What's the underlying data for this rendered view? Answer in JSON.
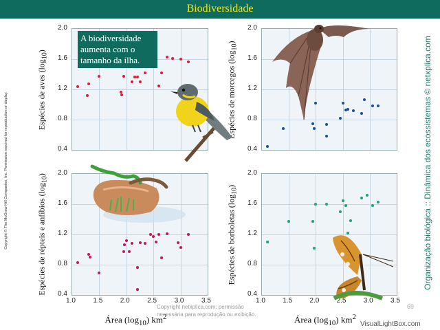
{
  "header": {
    "title": "Biodiversidade"
  },
  "callout": {
    "text": "A biodiversidade aumenta com o tamanho da ilha."
  },
  "side": {
    "copyright_left": "Copyright © The McGraw-Hill Companies, Inc. Permission required for reproduction or display.",
    "right_text": "Organização biológica :: Dinâmica dos ecossistemas © netxplica.com"
  },
  "footer": {
    "line1": "Copyright netxplica.com: permissão",
    "line2": "necessária para reprodução ou exibição.",
    "page": "69",
    "watermark": "VisualLightBox.com"
  },
  "colors": {
    "birds": "#e01b3c",
    "bats": "#1a4ea0",
    "reptiles": "#c2185b",
    "butterflies": "#1fa36f",
    "header": "#0f6b5e",
    "title_text": "#f3e61c"
  },
  "chart_data": [
    {
      "type": "scatter",
      "title": "",
      "xlabel": "",
      "ylabel": "Espécies de aves (log10)",
      "xlim": [
        1.0,
        3.5
      ],
      "ylim": [
        0.4,
        2.0
      ],
      "xticks": [],
      "yticks": [
        "2.0",
        "1.6",
        "1.2",
        "0.8",
        "0.4"
      ],
      "grid": true,
      "series": [
        {
          "x": [
            1.1,
            1.3,
            1.28,
            1.5,
            1.9,
            1.92,
            1.95,
            2.1,
            2.15,
            2.2,
            2.25,
            2.3,
            2.35,
            2.4,
            2.5,
            2.6,
            2.65,
            2.75,
            2.85,
            3.0,
            3.15
          ],
          "y": [
            1.24,
            1.27,
            1.12,
            1.37,
            1.16,
            1.13,
            1.37,
            1.3,
            1.36,
            1.36,
            1.3,
            1.5,
            1.42,
            1.55,
            1.55,
            1.25,
            1.42,
            1.63,
            1.61,
            1.6,
            1.56
          ]
        }
      ]
    },
    {
      "type": "scatter",
      "title": "",
      "xlabel": "",
      "ylabel": "Espécies de morcegos (log10)",
      "xlim": [
        1.0,
        3.5
      ],
      "ylim": [
        0.4,
        2.0
      ],
      "xticks": [],
      "yticks": [
        "2.0",
        "1.6",
        "1.2",
        "0.8",
        "0.4"
      ],
      "grid": true,
      "series": [
        {
          "x": [
            1.1,
            1.4,
            1.95,
            1.97,
            2.0,
            2.2,
            2.2,
            2.45,
            2.5,
            2.55,
            2.6,
            2.7,
            2.85,
            2.9,
            3.05,
            3.15
          ],
          "y": [
            0.45,
            0.68,
            0.75,
            0.68,
            1.02,
            0.74,
            0.58,
            0.82,
            1.02,
            0.93,
            0.94,
            0.92,
            0.88,
            1.06,
            0.98,
            0.98
          ]
        }
      ]
    },
    {
      "type": "scatter",
      "title": "",
      "xlabel": "Área (log10) km2",
      "ylabel": "Espécies de répteis e anfíbios (log10)",
      "xlim": [
        1.0,
        3.5
      ],
      "ylim": [
        0.4,
        2.0
      ],
      "xticks": [
        "1.0",
        "1.5",
        "2.0",
        "2.5",
        "3.0",
        "3.5"
      ],
      "yticks": [
        "2.0",
        "1.6",
        "1.2",
        "0.8",
        "0.4"
      ],
      "grid": true,
      "series": [
        {
          "x": [
            1.1,
            1.3,
            1.33,
            1.5,
            1.95,
            1.97,
            2.0,
            2.05,
            2.1,
            2.2,
            2.2,
            2.25,
            2.35,
            2.45,
            2.5,
            2.55,
            2.6,
            2.65,
            2.75,
            2.95,
            3.0,
            3.15
          ],
          "y": [
            0.83,
            0.94,
            0.9,
            0.69,
            0.97,
            1.06,
            1.12,
            0.97,
            1.08,
            0.76,
            0.47,
            1.09,
            1.08,
            1.2,
            1.17,
            1.1,
            1.2,
            0.89,
            1.21,
            1.09,
            1.03,
            1.2
          ]
        }
      ]
    },
    {
      "type": "scatter",
      "title": "",
      "xlabel": "Área (log10) km2",
      "ylabel": "Espécies de borboletas (log10)",
      "xlim": [
        1.0,
        3.5
      ],
      "ylim": [
        0.4,
        2.0
      ],
      "xticks": [
        "1.0",
        "1.5",
        "2.0",
        "2.5",
        "3.0",
        "3.5"
      ],
      "yticks": [
        "2.0",
        "1.6",
        "1.2",
        "0.8",
        "0.4"
      ],
      "grid": true,
      "series": [
        {
          "x": [
            1.1,
            1.5,
            1.95,
            1.97,
            2.0,
            2.2,
            2.45,
            2.5,
            2.55,
            2.6,
            2.65,
            2.85,
            2.95,
            3.05,
            3.15
          ],
          "y": [
            1.1,
            1.37,
            1.37,
            1.02,
            1.6,
            1.6,
            1.5,
            1.65,
            1.58,
            1.22,
            1.38,
            1.68,
            1.72,
            1.58,
            1.63
          ]
        }
      ]
    }
  ]
}
